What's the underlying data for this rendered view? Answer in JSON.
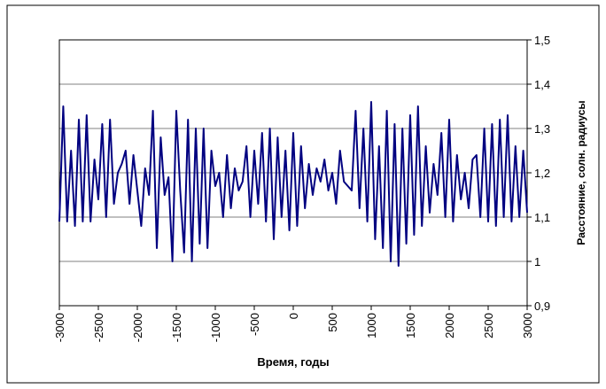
{
  "chart_data": {
    "type": "line",
    "xlabel": "Время, годы",
    "ylabel": "Расстояние, солн. радиусы",
    "x": [
      -3000,
      -2950,
      -2900,
      -2850,
      -2800,
      -2750,
      -2700,
      -2650,
      -2600,
      -2550,
      -2500,
      -2450,
      -2400,
      -2350,
      -2300,
      -2250,
      -2200,
      -2150,
      -2100,
      -2050,
      -2000,
      -1950,
      -1900,
      -1850,
      -1800,
      -1750,
      -1700,
      -1650,
      -1600,
      -1550,
      -1500,
      -1450,
      -1400,
      -1350,
      -1300,
      -1250,
      -1200,
      -1150,
      -1100,
      -1050,
      -1000,
      -950,
      -900,
      -850,
      -800,
      -750,
      -700,
      -650,
      -600,
      -550,
      -500,
      -450,
      -400,
      -350,
      -300,
      -250,
      -200,
      -150,
      -100,
      -50,
      0,
      50,
      100,
      150,
      200,
      250,
      300,
      350,
      400,
      450,
      500,
      550,
      600,
      650,
      700,
      750,
      800,
      850,
      900,
      950,
      1000,
      1050,
      1100,
      1150,
      1200,
      1250,
      1300,
      1350,
      1400,
      1450,
      1500,
      1550,
      1600,
      1650,
      1700,
      1750,
      1800,
      1850,
      1900,
      1950,
      2000,
      2050,
      2100,
      2150,
      2200,
      2250,
      2300,
      2350,
      2400,
      2450,
      2500,
      2550,
      2600,
      2650,
      2700,
      2750,
      2800,
      2850,
      2900,
      2950,
      3000
    ],
    "series": [
      {
        "color": "#000080",
        "values": [
          1.09,
          1.35,
          1.09,
          1.25,
          1.08,
          1.32,
          1.09,
          1.33,
          1.09,
          1.23,
          1.14,
          1.31,
          1.1,
          1.32,
          1.13,
          1.2,
          1.22,
          1.25,
          1.13,
          1.24,
          1.16,
          1.08,
          1.21,
          1.15,
          1.34,
          1.03,
          1.28,
          1.15,
          1.19,
          1.0,
          1.34,
          1.16,
          1.02,
          1.32,
          1.0,
          1.3,
          1.04,
          1.3,
          1.03,
          1.25,
          1.17,
          1.2,
          1.1,
          1.24,
          1.12,
          1.21,
          1.16,
          1.18,
          1.26,
          1.1,
          1.25,
          1.13,
          1.29,
          1.09,
          1.3,
          1.05,
          1.28,
          1.1,
          1.25,
          1.07,
          1.29,
          1.08,
          1.26,
          1.12,
          1.22,
          1.15,
          1.21,
          1.18,
          1.23,
          1.16,
          1.2,
          1.13,
          1.25,
          1.18,
          1.17,
          1.16,
          1.34,
          1.12,
          1.3,
          1.09,
          1.36,
          1.05,
          1.26,
          1.03,
          1.34,
          1.0,
          1.31,
          0.99,
          1.3,
          1.04,
          1.33,
          1.06,
          1.35,
          1.08,
          1.26,
          1.11,
          1.22,
          1.15,
          1.29,
          1.1,
          1.32,
          1.09,
          1.24,
          1.14,
          1.2,
          1.12,
          1.23,
          1.24,
          1.1,
          1.3,
          1.09,
          1.31,
          1.08,
          1.32,
          1.1,
          1.33,
          1.09,
          1.26,
          1.1,
          1.25,
          1.11
        ]
      }
    ],
    "xlim": [
      -3000,
      3000
    ],
    "xticks": [
      -3000,
      -2500,
      -2000,
      -1500,
      -1000,
      -500,
      0,
      500,
      1000,
      1500,
      2000,
      2500,
      3000
    ],
    "ylim": [
      0.9,
      1.5
    ],
    "yticks": [
      {
        "value": 0.9,
        "label": "0,9"
      },
      1,
      {
        "value": 1.1,
        "label": "1,1"
      },
      {
        "value": 1.2,
        "label": "1,2"
      },
      {
        "value": 1.3,
        "label": "1,3"
      },
      {
        "value": 1.4,
        "label": "1,4"
      },
      {
        "value": 1.5,
        "label": "1,5"
      }
    ],
    "grid": true
  }
}
